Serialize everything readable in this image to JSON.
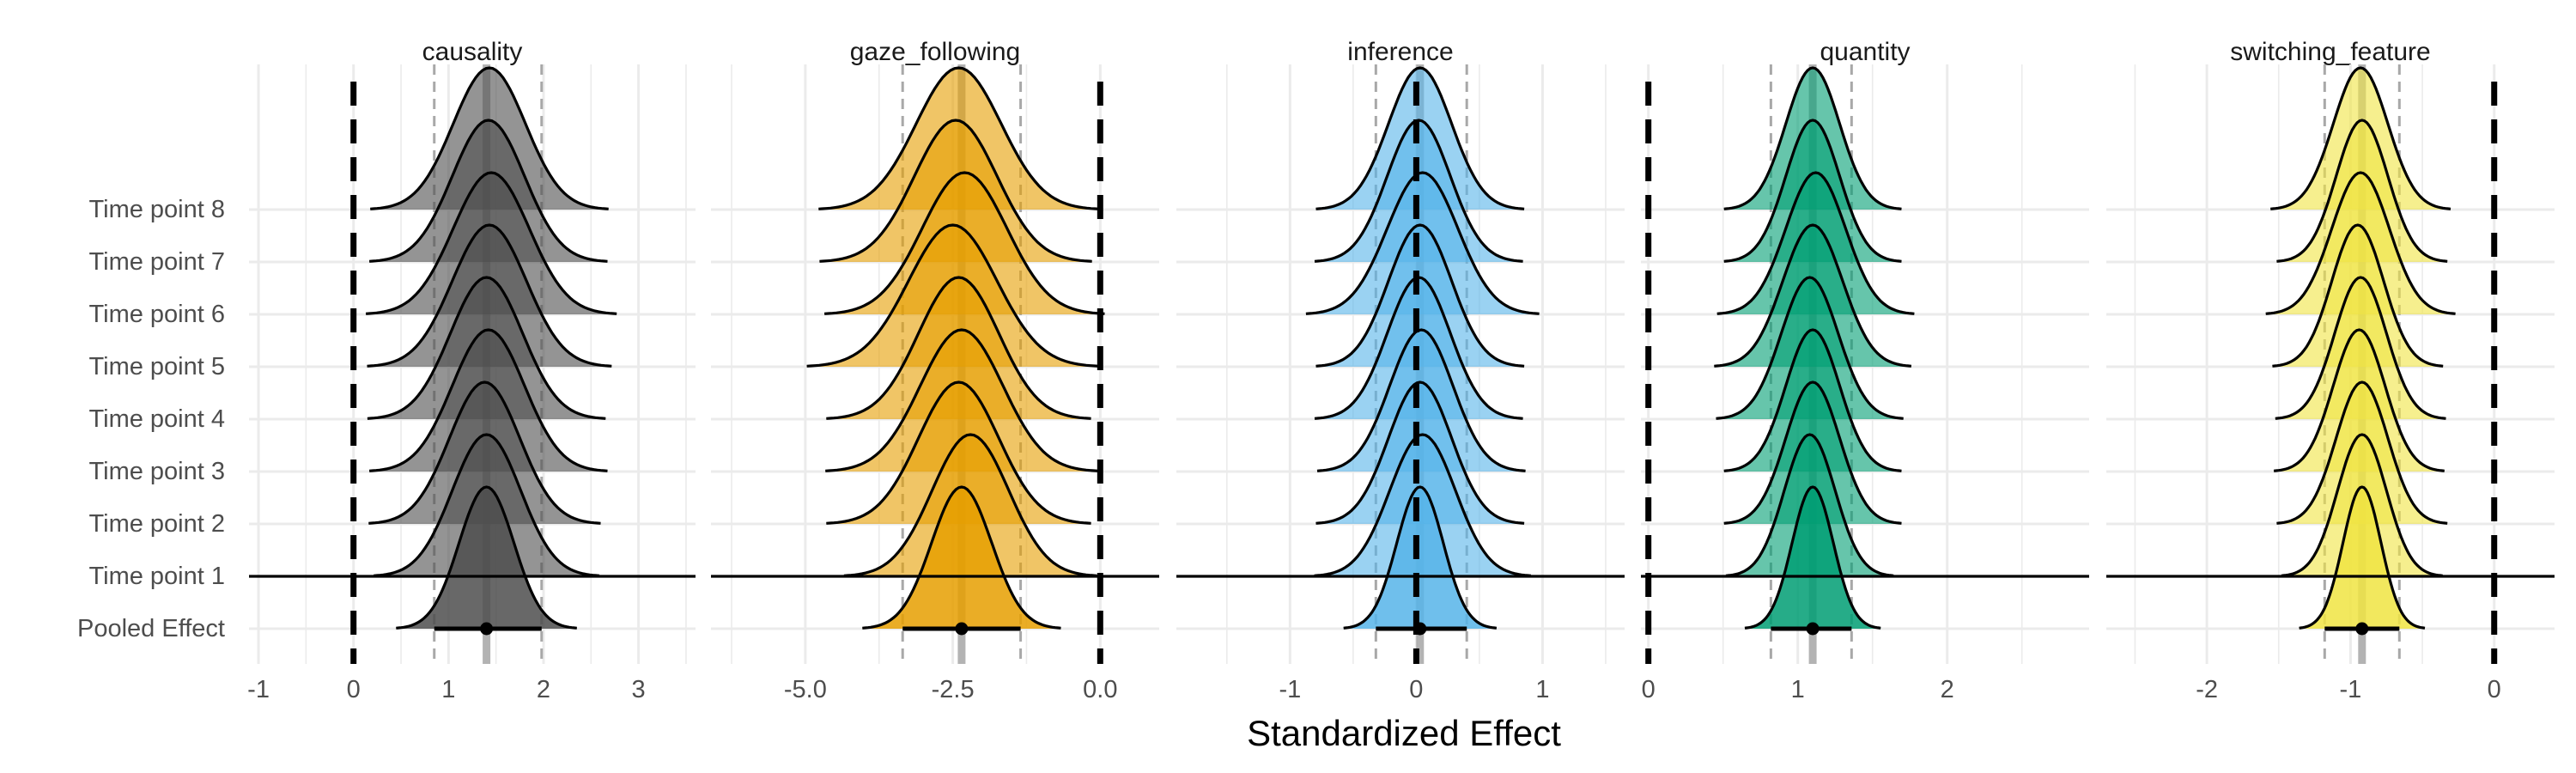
{
  "chart_data": {
    "type": "ridgeline",
    "xlabel": "Standardized Effect",
    "ylabel": "",
    "row_labels": [
      "Pooled Effect",
      "Time point 1",
      "Time point 2",
      "Time point 3",
      "Time point 4",
      "Time point 5",
      "Time point 6",
      "Time point 7",
      "Time point 8"
    ],
    "grid": true,
    "reference_line": 0,
    "panels": [
      {
        "title": "causality",
        "color": "#4d4d4d",
        "xlim": [
          -1.1,
          3.6
        ],
        "ticks": [
          -1,
          0,
          1,
          2,
          3
        ],
        "tick_labels": [
          "-1",
          "0",
          "1",
          "2",
          "3"
        ],
        "pooled": {
          "mean": 1.4,
          "lower": 0.85,
          "upper": 1.98
        },
        "time_points": [
          {
            "label": "Time point 1",
            "mean": 1.4,
            "sd": 0.36
          },
          {
            "label": "Time point 2",
            "mean": 1.38,
            "sd": 0.37
          },
          {
            "label": "Time point 3",
            "mean": 1.42,
            "sd": 0.38
          },
          {
            "label": "Time point 4",
            "mean": 1.4,
            "sd": 0.38
          },
          {
            "label": "Time point 5",
            "mean": 1.43,
            "sd": 0.39
          },
          {
            "label": "Time point 6",
            "mean": 1.45,
            "sd": 0.4
          },
          {
            "label": "Time point 7",
            "mean": 1.42,
            "sd": 0.38
          },
          {
            "label": "Time point 8",
            "mean": 1.43,
            "sd": 0.38
          }
        ]
      },
      {
        "title": "gaze_following",
        "color": "#e69f00",
        "xlim": [
          -6.6,
          1.0
        ],
        "ticks": [
          -5.0,
          -2.5,
          0.0
        ],
        "tick_labels": [
          "-5.0",
          "-2.5",
          "0.0"
        ],
        "pooled": {
          "mean": -2.35,
          "lower": -3.35,
          "upper": -1.35
        },
        "time_points": [
          {
            "label": "Time point 1",
            "mean": -2.2,
            "sd": 0.65
          },
          {
            "label": "Time point 2",
            "mean": -2.4,
            "sd": 0.68
          },
          {
            "label": "Time point 3",
            "mean": -2.35,
            "sd": 0.7
          },
          {
            "label": "Time point 4",
            "mean": -2.4,
            "sd": 0.68
          },
          {
            "label": "Time point 5",
            "mean": -2.5,
            "sd": 0.75
          },
          {
            "label": "Time point 6",
            "mean": -2.3,
            "sd": 0.72
          },
          {
            "label": "Time point 7",
            "mean": -2.45,
            "sd": 0.7
          },
          {
            "label": "Time point 8",
            "mean": -2.4,
            "sd": 0.72
          }
        ]
      },
      {
        "title": "inference",
        "color": "#56b4e9",
        "xlim": [
          -1.9,
          1.65
        ],
        "ticks": [
          -1,
          0,
          1
        ],
        "tick_labels": [
          "-1",
          "0",
          "1"
        ],
        "pooled": {
          "mean": 0.03,
          "lower": -0.32,
          "upper": 0.4
        },
        "time_points": [
          {
            "label": "Time point 1",
            "mean": 0.05,
            "sd": 0.26
          },
          {
            "label": "Time point 2",
            "mean": 0.03,
            "sd": 0.25
          },
          {
            "label": "Time point 3",
            "mean": 0.04,
            "sd": 0.25
          },
          {
            "label": "Time point 4",
            "mean": 0.02,
            "sd": 0.25
          },
          {
            "label": "Time point 5",
            "mean": 0.03,
            "sd": 0.25
          },
          {
            "label": "Time point 6",
            "mean": 0.05,
            "sd": 0.28
          },
          {
            "label": "Time point 7",
            "mean": 0.02,
            "sd": 0.25
          },
          {
            "label": "Time point 8",
            "mean": 0.03,
            "sd": 0.25
          }
        ]
      },
      {
        "title": "quantity",
        "color": "#009e73",
        "xlim": [
          -0.05,
          2.95
        ],
        "ticks": [
          0,
          1,
          2
        ],
        "tick_labels": [
          "0",
          "1",
          "2"
        ],
        "pooled": {
          "mean": 1.1,
          "lower": 0.82,
          "upper": 1.36
        },
        "time_points": [
          {
            "label": "Time point 1",
            "mean": 1.08,
            "sd": 0.17
          },
          {
            "label": "Time point 2",
            "mean": 1.1,
            "sd": 0.18
          },
          {
            "label": "Time point 3",
            "mean": 1.1,
            "sd": 0.18
          },
          {
            "label": "Time point 4",
            "mean": 1.08,
            "sd": 0.19
          },
          {
            "label": "Time point 5",
            "mean": 1.1,
            "sd": 0.2
          },
          {
            "label": "Time point 6",
            "mean": 1.12,
            "sd": 0.2
          },
          {
            "label": "Time point 7",
            "mean": 1.1,
            "sd": 0.18
          },
          {
            "label": "Time point 8",
            "mean": 1.1,
            "sd": 0.18
          }
        ]
      },
      {
        "title": "switching_feature",
        "color": "#f0e442",
        "xlim": [
          -2.7,
          0.42
        ],
        "ticks": [
          -2,
          -1,
          0
        ],
        "tick_labels": [
          "-2",
          "-1",
          "0"
        ],
        "pooled": {
          "mean": -0.92,
          "lower": -1.18,
          "upper": -0.66
        },
        "time_points": [
          {
            "label": "Time point 1",
            "mean": -0.92,
            "sd": 0.17
          },
          {
            "label": "Time point 2",
            "mean": -0.92,
            "sd": 0.18
          },
          {
            "label": "Time point 3",
            "mean": -0.94,
            "sd": 0.18
          },
          {
            "label": "Time point 4",
            "mean": -0.93,
            "sd": 0.18
          },
          {
            "label": "Time point 5",
            "mean": -0.95,
            "sd": 0.18
          },
          {
            "label": "Time point 6",
            "mean": -0.93,
            "sd": 0.2
          },
          {
            "label": "Time point 7",
            "mean": -0.92,
            "sd": 0.18
          },
          {
            "label": "Time point 8",
            "mean": -0.93,
            "sd": 0.19
          }
        ]
      }
    ]
  }
}
